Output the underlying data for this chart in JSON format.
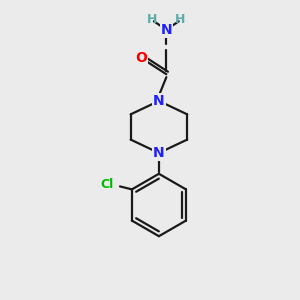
{
  "bg_color": "#ebebeb",
  "bond_color": "#1a1a1a",
  "bond_width": 1.6,
  "atom_colors": {
    "N": "#2020ff",
    "O": "#ff0000",
    "Cl": "#00bb00",
    "H": "#5faaaa",
    "C": "#1a1a1a"
  }
}
